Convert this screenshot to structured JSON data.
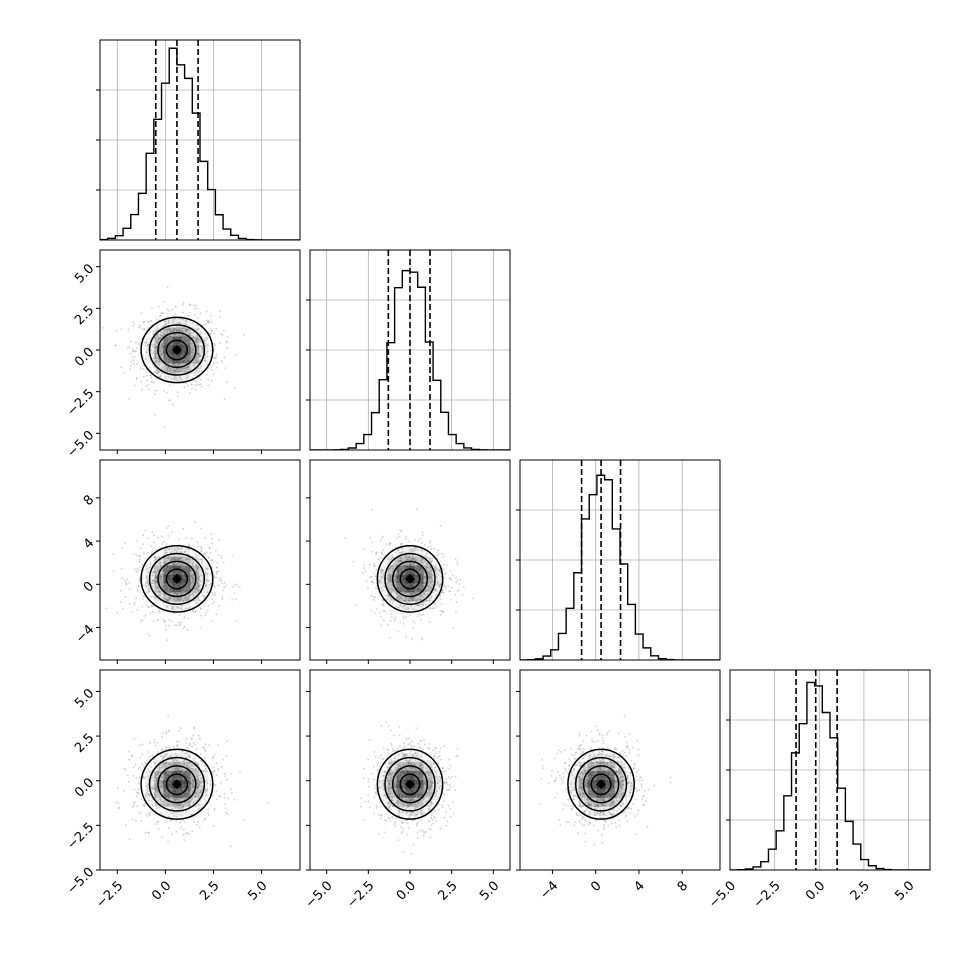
{
  "chart_data": {
    "type": "corner",
    "parameters": [
      {
        "range": [
          -3.4,
          7.0
        ],
        "ticks": [
          -2.5,
          0.0,
          2.5,
          5.0
        ],
        "tick_labels": [
          "−2.5",
          "0.0",
          "2.5",
          "5.0"
        ],
        "mean": 0.6,
        "sigma": 1.1,
        "quantiles": [
          -0.5,
          0.6,
          1.7
        ]
      },
      {
        "range": [
          -6.0,
          6.0
        ],
        "ticks": [
          -5.0,
          -2.5,
          0.0,
          2.5,
          5.0
        ],
        "tick_labels": [
          "−5.0",
          "−2.5",
          "0.0",
          "2.5",
          "5.0"
        ],
        "mean": 0.0,
        "sigma": 1.15,
        "quantiles": [
          -1.3,
          0.0,
          1.2
        ]
      },
      {
        "range": [
          -7.0,
          11.5
        ],
        "ticks": [
          -4,
          0,
          4,
          8
        ],
        "tick_labels": [
          "−4",
          "0",
          "4",
          "8"
        ],
        "mean": 0.5,
        "sigma": 1.8,
        "quantiles": [
          -1.3,
          0.5,
          2.3
        ]
      },
      {
        "range": [
          -5.0,
          6.2
        ],
        "ticks": [
          -5.0,
          -2.5,
          0.0,
          2.5,
          5.0
        ],
        "tick_labels": [
          "−5.0",
          "−2.5",
          "0.0",
          "2.5",
          "5.0"
        ],
        "mean": -0.2,
        "sigma": 1.15,
        "quantiles": [
          -1.3,
          -0.2,
          1.0
        ]
      }
    ],
    "histogram_y_ticks": [
      0.25,
      0.5,
      0.75
    ],
    "quantile_style": "dashed",
    "grid": true,
    "colors": {
      "hist_line": "#000000",
      "scatter": "#9a9a9a",
      "grid": "#b0b0b0",
      "density": "#000000"
    }
  }
}
